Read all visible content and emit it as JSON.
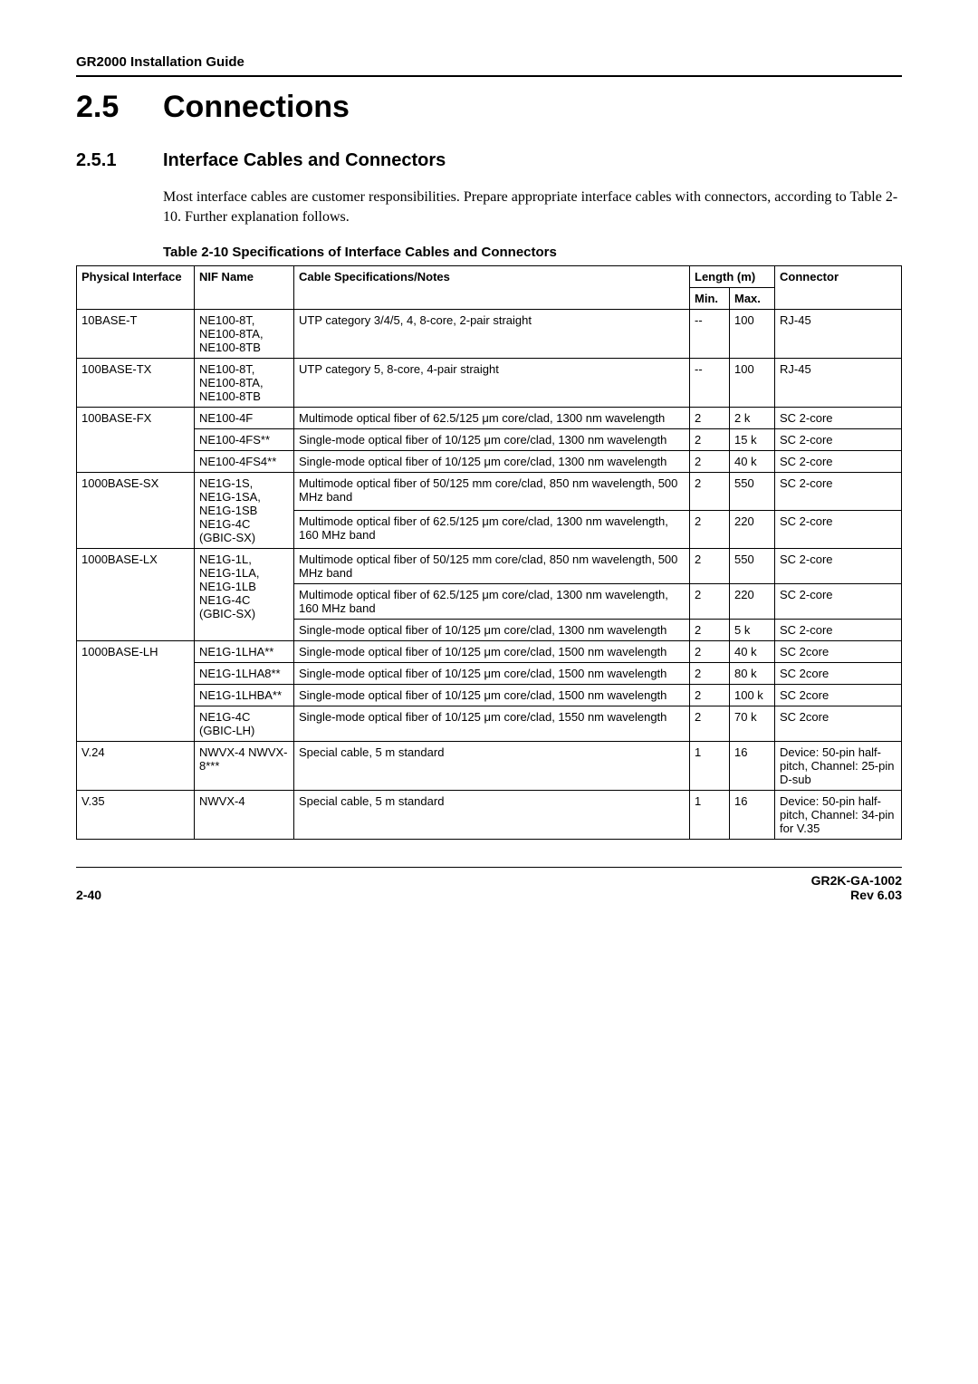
{
  "runningHead": "GR2000 Installation Guide",
  "h1": {
    "num": "2.5",
    "text": "Connections"
  },
  "h2": {
    "num": "2.5.1",
    "text": "Interface Cables and Connectors"
  },
  "paragraph": "Most interface cables are customer responsibilities. Prepare appropriate interface cables with connectors, according to Table 2-10. Further explanation follows.",
  "tableCaption": "Table 2-10  Specifications of Interface Cables and Connectors",
  "columns": {
    "physicalInterface": "Physical Interface",
    "nifName": "NIF Name",
    "cableSpec": "Cable Specifications/Notes",
    "length": "Length (m)",
    "min": "Min.",
    "max": "Max.",
    "connector": "Connector"
  },
  "rows": [
    {
      "pi": "10BASE-T",
      "piRowspan": 1,
      "nif": "NE100-8T, NE100-8TA, NE100-8TB",
      "nifRowspan": 1,
      "cable": "UTP category 3/4/5, 4, 8-core, 2-pair straight",
      "min": "--",
      "max": "100",
      "conn": "RJ-45"
    },
    {
      "pi": "100BASE-TX",
      "piRowspan": 1,
      "nif": "NE100-8T, NE100-8TA, NE100-8TB",
      "nifRowspan": 1,
      "cable": "UTP category 5, 8-core, 4-pair straight",
      "min": "--",
      "max": "100",
      "conn": "RJ-45"
    },
    {
      "pi": "100BASE-FX",
      "piRowspan": 3,
      "nif": "NE100-4F",
      "nifRowspan": 1,
      "cable": "Multimode optical fiber of 62.5/125 μm core/clad, 1300 nm wavelength",
      "min": "2",
      "max": "2 k",
      "conn": "SC 2-core"
    },
    {
      "nif": "NE100-4FS**",
      "nifRowspan": 1,
      "cable": "Single-mode optical fiber of 10/125 μm core/clad, 1300 nm wavelength",
      "min": "2",
      "max": "15 k",
      "conn": "SC 2-core"
    },
    {
      "nif": "NE100-4FS4**",
      "nifRowspan": 1,
      "cable": "Single-mode optical fiber of 10/125 μm core/clad, 1300 nm wavelength",
      "min": "2",
      "max": "40 k",
      "conn": "SC 2-core"
    },
    {
      "pi": "1000BASE-SX",
      "piRowspan": 2,
      "nif": "NE1G-1S, NE1G-1SA, NE1G-1SB NE1G-4C (GBIC-SX)",
      "nifRowspan": 2,
      "cable": "Multimode optical fiber of 50/125 mm core/clad, 850 nm wavelength, 500 MHz band",
      "min": "2",
      "max": "550",
      "conn": "SC 2-core"
    },
    {
      "cable": "Multimode optical fiber of 62.5/125 μm core/clad, 1300 nm wavelength, 160 MHz band",
      "min": "2",
      "max": "220",
      "conn": "SC 2-core"
    },
    {
      "pi": "1000BASE-LX",
      "piRowspan": 3,
      "nif": "NE1G-1L, NE1G-1LA, NE1G-1LB NE1G-4C (GBIC-SX)",
      "nifRowspan": 3,
      "cable": "Multimode optical fiber of 50/125 mm core/clad, 850 nm wavelength, 500 MHz band",
      "min": "2",
      "max": "550",
      "conn": "SC 2-core"
    },
    {
      "cable": "Multimode optical fiber of 62.5/125 μm core/clad, 1300 nm wavelength, 160 MHz band",
      "min": "2",
      "max": "220",
      "conn": "SC 2-core"
    },
    {
      "cable": "Single-mode optical fiber of 10/125 μm core/clad, 1300 nm wavelength",
      "min": "2",
      "max": "5 k",
      "conn": "SC 2-core"
    },
    {
      "pi": "1000BASE-LH",
      "piRowspan": 4,
      "nif": "NE1G-1LHA**",
      "nifRowspan": 1,
      "cable": "Single-mode optical fiber of 10/125 μm core/clad, 1500 nm wavelength",
      "min": "2",
      "max": "40 k",
      "conn": "SC 2core"
    },
    {
      "nif": "NE1G-1LHA8**",
      "nifRowspan": 1,
      "cable": "Single-mode optical fiber of 10/125 μm core/clad, 1500 nm wavelength",
      "min": "2",
      "max": "80 k",
      "conn": "SC 2core"
    },
    {
      "nif": "NE1G-1LHBA**",
      "nifRowspan": 1,
      "cable": "Single-mode optical fiber of 10/125 μm core/clad, 1500 nm wavelength",
      "min": "2",
      "max": "100 k",
      "conn": "SC 2core"
    },
    {
      "nif": "NE1G-4C (GBIC-LH)",
      "nifRowspan": 1,
      "cable": "Single-mode optical fiber of 10/125 μm core/clad, 1550 nm wavelength",
      "min": "2",
      "max": "70 k",
      "conn": "SC 2core"
    },
    {
      "pi": "V.24",
      "piRowspan": 1,
      "nif": "NWVX-4 NWVX-8***",
      "nifRowspan": 1,
      "cable": "Special cable, 5 m standard",
      "min": "1",
      "max": "16",
      "conn": "Device: 50-pin half-pitch, Channel: 25-pin D-sub"
    },
    {
      "pi": "V.35",
      "piRowspan": 1,
      "nif": "NWVX-4",
      "nifRowspan": 1,
      "cable": "Special cable, 5 m standard",
      "min": "1",
      "max": "16",
      "conn": "Device: 50-pin half-pitch, Channel: 34-pin for V.35"
    }
  ],
  "footer": {
    "left": "2-40",
    "right1": "GR2K-GA-1002",
    "right2": "Rev 6.03"
  }
}
